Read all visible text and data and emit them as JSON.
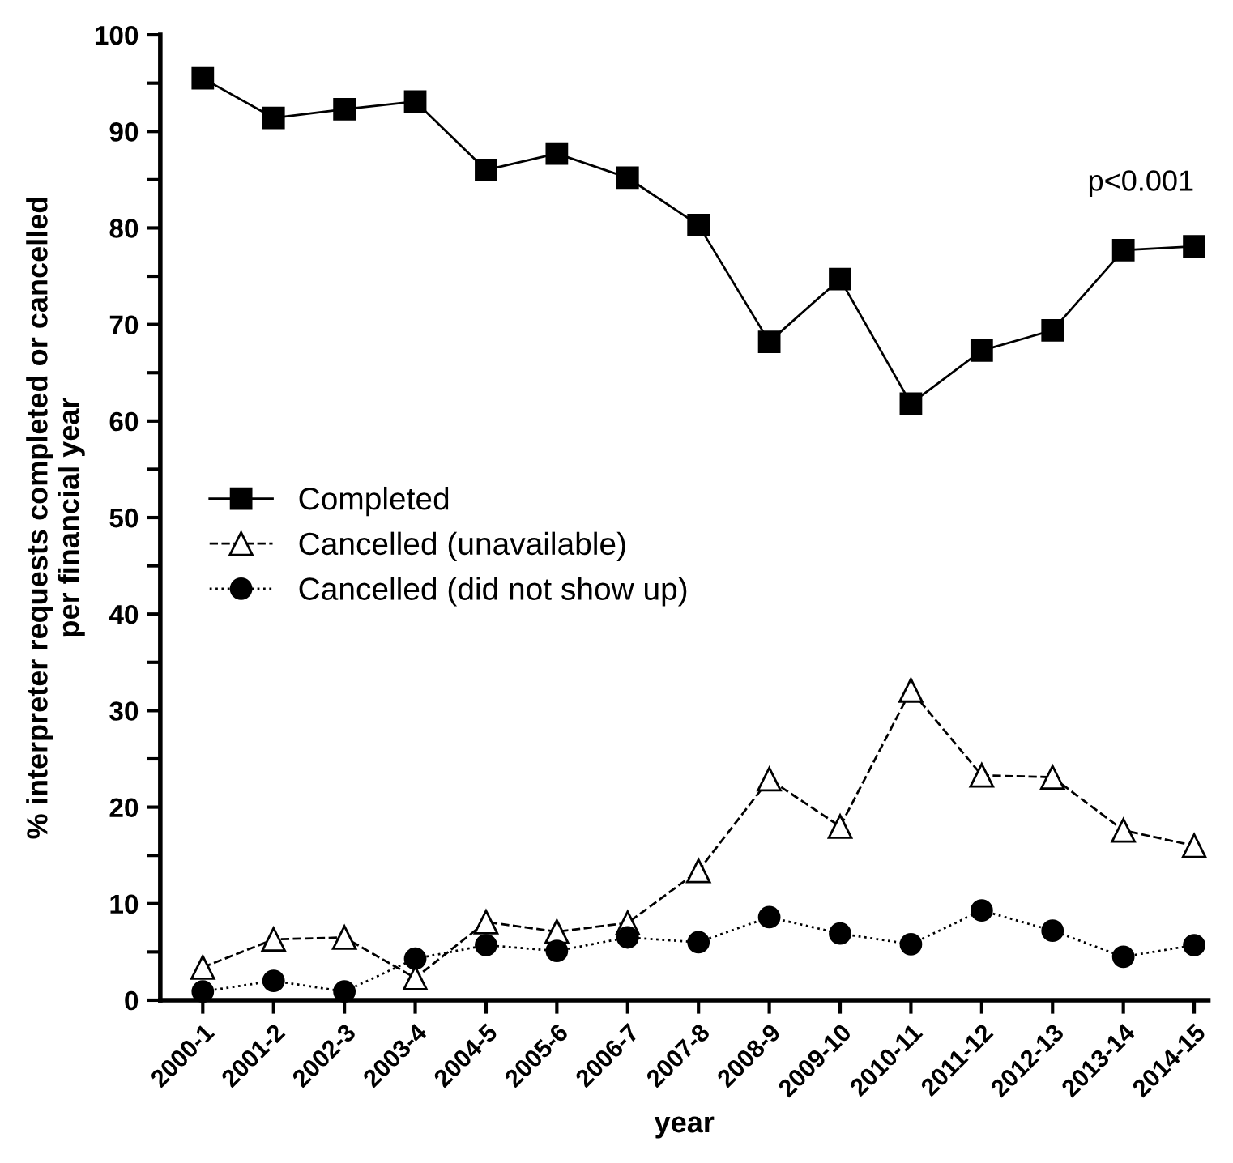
{
  "chart_data": {
    "type": "line",
    "xlabel": "year",
    "ylabel": "% interpreter requests completed or cancelled\nper financial year",
    "categories": [
      "2000-1",
      "2001-2",
      "2002-3",
      "2003-4",
      "2004-5",
      "2005-6",
      "2006-7",
      "2007-8",
      "2008-9",
      "2009-10",
      "2010-11",
      "2011-12",
      "2012-13",
      "2013-14",
      "2014-15"
    ],
    "series": [
      {
        "name": "Completed",
        "color": "#000000",
        "marker": "square",
        "line_style": "solid",
        "values": [
          95.5,
          91.4,
          92.3,
          93.1,
          86.0,
          87.7,
          85.2,
          80.3,
          68.2,
          74.7,
          61.8,
          67.3,
          69.4,
          77.7,
          78.1
        ]
      },
      {
        "name": "Cancelled (unavailable)",
        "color": "#000000",
        "marker": "triangle",
        "line_style": "dashed",
        "values": [
          3.4,
          6.3,
          6.5,
          2.3,
          8.1,
          7.1,
          8.0,
          13.4,
          22.9,
          18.0,
          32.1,
          23.3,
          23.1,
          17.6,
          16.0
        ]
      },
      {
        "name": "Cancelled (did not show up)",
        "color": "#000000",
        "marker": "circle",
        "line_style": "dotted",
        "values": [
          0.9,
          2.0,
          0.9,
          4.3,
          5.7,
          5.1,
          6.5,
          6.0,
          8.6,
          6.9,
          5.8,
          9.3,
          7.2,
          4.5,
          5.7
        ]
      }
    ],
    "ylim": [
      0,
      100
    ],
    "yticks": [
      0,
      {
        "value": 5,
        "label": null
      },
      10,
      {
        "value": 15,
        "label": null
      },
      20,
      {
        "value": 25,
        "label": null
      },
      30,
      {
        "value": 35,
        "label": null
      },
      40,
      {
        "value": 45,
        "label": null
      },
      50,
      {
        "value": 55,
        "label": null
      },
      60,
      {
        "value": 65,
        "label": null
      },
      70,
      {
        "value": 75,
        "label": null
      },
      80,
      {
        "value": 85,
        "label": null
      },
      90,
      {
        "value": 95,
        "label": null
      },
      100
    ],
    "annotations": [
      {
        "text": "p<0.001",
        "x": "2014-15",
        "y": 78.1
      }
    ],
    "legend": "left",
    "grid": false
  }
}
